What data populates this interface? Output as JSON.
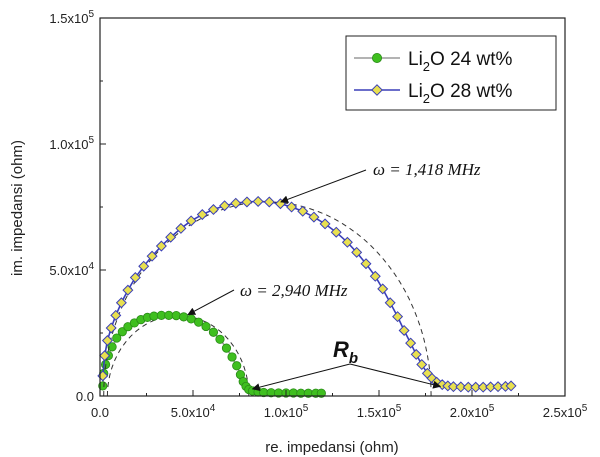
{
  "chart_data": {
    "type": "scatter",
    "xlabel": "re. impedansi (ohm)",
    "ylabel": "im. impedansi (ohm)",
    "xlim": [
      0,
      250000
    ],
    "ylim": [
      0,
      150000
    ],
    "grid": false,
    "legend_position": "top-right",
    "x_ticks": [
      {
        "value": 0,
        "label": "0.0"
      },
      {
        "value": 50000,
        "label": "5.0x10",
        "exp": "4"
      },
      {
        "value": 100000,
        "label": "1.0x10",
        "exp": "5"
      },
      {
        "value": 150000,
        "label": "1.5x10",
        "exp": "5"
      },
      {
        "value": 200000,
        "label": "2.0x10",
        "exp": "5"
      },
      {
        "value": 250000,
        "label": "2.5x10",
        "exp": "5"
      }
    ],
    "y_ticks": [
      {
        "value": 0,
        "label": "0.0"
      },
      {
        "value": 50000,
        "label": "5.0x10",
        "exp": "4"
      },
      {
        "value": 100000,
        "label": "1.0x10",
        "exp": "5"
      },
      {
        "value": 150000,
        "label": "1.5x10",
        "exp": "5"
      }
    ],
    "series": [
      {
        "name": "Li2O 24 wt%",
        "legend_main": "Li",
        "legend_sub": "2",
        "legend_rest": "O 24 wt%",
        "marker": "circle",
        "color": "#3fbf1f",
        "line_color": "#9a9a9a",
        "tail_color": "#e0501a",
        "center": 42000,
        "radius": 38000,
        "x": [
          1500,
          2000,
          3000,
          4500,
          6500,
          9000,
          12000,
          15000,
          18500,
          22000,
          25500,
          29000,
          33000,
          37000,
          41000,
          45000,
          49000,
          53000,
          57000,
          61000,
          64500,
          68000,
          71000,
          73500,
          75500,
          77000,
          78500,
          80000,
          82000,
          85000,
          88000,
          92000,
          96000,
          100000,
          104000,
          108000,
          112000,
          116000,
          119000
        ],
        "y": [
          4000,
          9000,
          12500,
          16000,
          19500,
          23000,
          25500,
          27500,
          29000,
          30300,
          31200,
          31700,
          32000,
          32000,
          31900,
          31400,
          30600,
          29300,
          27600,
          25300,
          22500,
          19000,
          15500,
          12000,
          8500,
          5700,
          3800,
          2600,
          2000,
          1600,
          1400,
          1300,
          1200,
          1200,
          1200,
          1100,
          1100,
          1100,
          1100
        ]
      },
      {
        "name": "Li2O 28 wt%",
        "legend_main": "Li",
        "legend_sub": "2",
        "legend_rest": "O 28 wt%",
        "marker": "diamond",
        "color": "#e8e050",
        "edge_color": "#3a3fb8",
        "line_color": "#3a3fb8",
        "tail_color": "#3a58e0",
        "center": 90000,
        "radius": 88000,
        "x": [
          1500,
          2500,
          4000,
          6000,
          8500,
          11500,
          15000,
          19000,
          23500,
          28000,
          33000,
          38000,
          43500,
          49000,
          55000,
          61000,
          67000,
          73000,
          79000,
          85000,
          91000,
          97000,
          103000,
          109000,
          115000,
          121000,
          127000,
          133000,
          138000,
          143000,
          148000,
          152000,
          156000,
          160000,
          163500,
          167000,
          170000,
          173000,
          176000,
          178500,
          181000,
          184000,
          187000,
          190000,
          194000,
          198000,
          202000,
          206000,
          210000,
          214000,
          218000,
          221000
        ],
        "y": [
          8000,
          16000,
          22000,
          27000,
          32000,
          37000,
          42000,
          47000,
          51500,
          55500,
          59500,
          63000,
          66500,
          69500,
          72000,
          74000,
          75500,
          76500,
          77000,
          77200,
          77000,
          76300,
          75000,
          73300,
          71000,
          68300,
          65000,
          61000,
          57000,
          52500,
          47500,
          42500,
          37000,
          31500,
          26000,
          21000,
          16500,
          12500,
          9000,
          7000,
          5500,
          4500,
          4000,
          3700,
          3600,
          3500,
          3500,
          3500,
          3600,
          3700,
          3800,
          4000
        ]
      }
    ],
    "annotations": [
      {
        "text": "ω = 1,418 MHz",
        "arrow_to": [
          94000,
          77000
        ]
      },
      {
        "text": "ω = 2,940 MHz",
        "arrow_to": [
          43000,
          31500
        ]
      },
      {
        "text": "R",
        "sub": "b",
        "arrows_to": [
          [
            82000,
            2000
          ],
          [
            183000,
            3000
          ]
        ]
      }
    ]
  }
}
